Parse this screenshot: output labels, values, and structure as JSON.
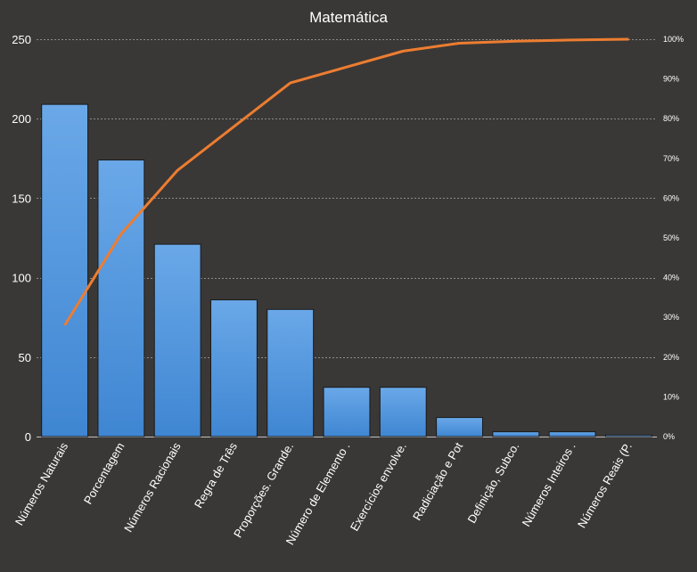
{
  "chart_data": {
    "type": "bar",
    "title": "Matemática",
    "xlabel": "",
    "ylabel": "",
    "ylim": [
      0,
      250
    ],
    "y2lim": [
      0,
      100
    ],
    "grid": true,
    "categories": [
      "Números  Naturais",
      "Porcentagem",
      "Números  Racionais",
      "Regra de Três",
      "Proporções.  Grande.",
      "Número de Elemento .",
      "Exercícios envolve.",
      "Radiciação e Pot",
      "Definição, Subco.",
      "Números  Inteiros .",
      "Números  Reais (P."
    ],
    "values": [
      209,
      174,
      121,
      86,
      80,
      31,
      31,
      12,
      3,
      3,
      1
    ],
    "cumulative_percent": [
      28,
      51,
      67,
      78,
      89,
      93,
      97,
      99,
      99.5,
      99.8,
      100
    ],
    "y_ticks": [
      "0",
      "50",
      "100",
      "150",
      "200",
      "250"
    ],
    "y2_ticks": [
      "0%",
      "10%",
      "20%",
      "30%",
      "40%",
      "50%",
      "60%",
      "70%",
      "80%",
      "90%",
      "100%"
    ],
    "colors": {
      "background": "#3a3836",
      "bar_top": "#6aa8e8",
      "bar_bottom": "#3f86d2",
      "line": "#ed7d31",
      "grid": "#8c8c8c"
    }
  }
}
